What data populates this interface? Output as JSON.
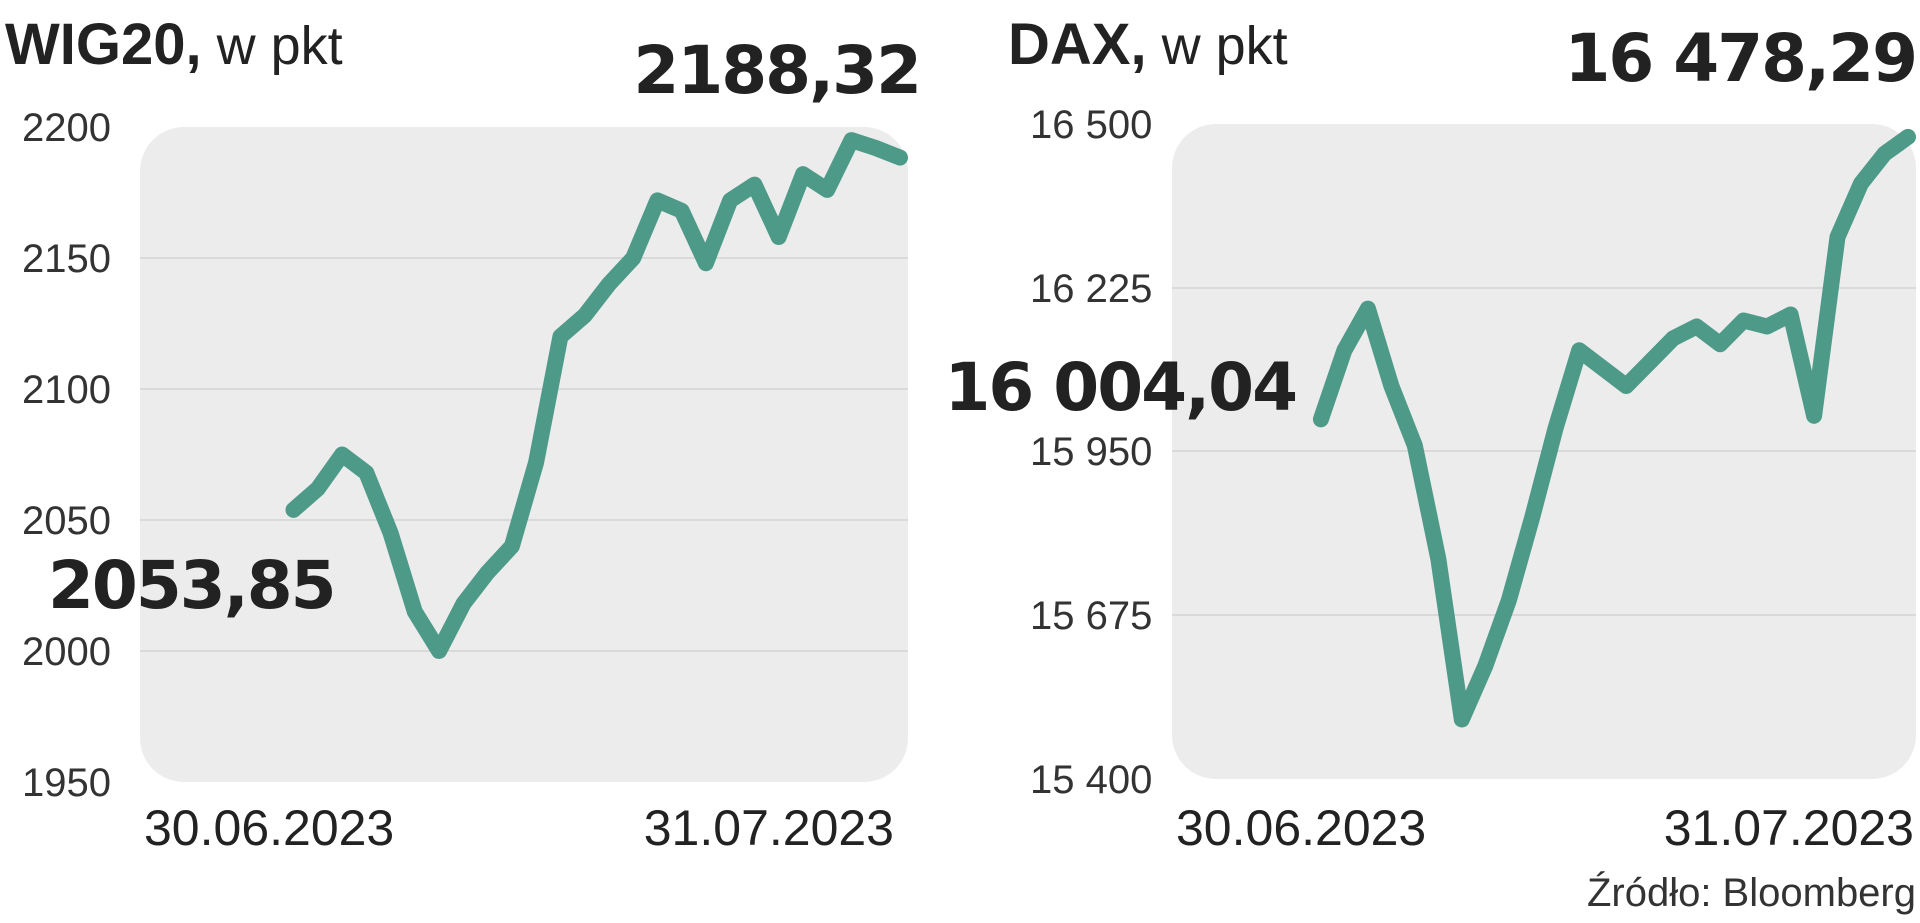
{
  "source": "Źródło: Bloomberg",
  "colors": {
    "line": "#4e9a88",
    "panel": "#ececec",
    "grid": "#d9d9d9",
    "text": "#222222"
  },
  "chart_data": [
    {
      "type": "line",
      "title": "WIG20,",
      "unit": " w pkt",
      "start_label": "2053,85",
      "end_label": "2188,32",
      "x_start_label": "30.06.2023",
      "x_end_label": "31.07.2023",
      "yticks": [
        "2200",
        "2150",
        "2100",
        "2050",
        "2000",
        "1950"
      ],
      "ylim": [
        1950,
        2200
      ],
      "xlim": [
        "2023-06-30",
        "2023-07-31"
      ],
      "grid": true,
      "x": [
        "2023-07-06",
        "2023-07-07",
        "2023-07-08",
        "2023-07-09",
        "2023-07-10",
        "2023-07-11",
        "2023-07-12",
        "2023-07-13",
        "2023-07-14",
        "2023-07-15",
        "2023-07-16",
        "2023-07-17",
        "2023-07-18",
        "2023-07-19",
        "2023-07-20",
        "2023-07-21",
        "2023-07-22",
        "2023-07-23",
        "2023-07-24",
        "2023-07-25",
        "2023-07-26",
        "2023-07-27",
        "2023-07-28",
        "2023-07-29",
        "2023-07-30",
        "2023-07-31"
      ],
      "values": [
        2053.85,
        2062,
        2075,
        2068,
        2045,
        2015,
        2000,
        2018,
        2030,
        2040,
        2072,
        2120,
        2128,
        2140,
        2150,
        2172,
        2168,
        2148,
        2172,
        2178,
        2158,
        2182,
        2176,
        2195,
        2192,
        2188.32
      ]
    },
    {
      "type": "line",
      "title": "DAX,",
      "unit": " w pkt",
      "start_label": "16 004,04",
      "end_label": "16 478,29",
      "x_start_label": "30.06.2023",
      "x_end_label": "31.07.2023",
      "yticks": [
        "16 500",
        "16 225",
        "15 950",
        "15 675",
        "15 400"
      ],
      "ylim": [
        15400,
        16500
      ],
      "xlim": [
        "2023-06-30",
        "2023-07-31"
      ],
      "grid": true,
      "x": [
        "2023-07-06",
        "2023-07-07",
        "2023-07-08",
        "2023-07-09",
        "2023-07-10",
        "2023-07-11",
        "2023-07-12",
        "2023-07-13",
        "2023-07-14",
        "2023-07-15",
        "2023-07-16",
        "2023-07-17",
        "2023-07-18",
        "2023-07-19",
        "2023-07-20",
        "2023-07-21",
        "2023-07-22",
        "2023-07-23",
        "2023-07-24",
        "2023-07-25",
        "2023-07-26",
        "2023-07-27",
        "2023-07-28",
        "2023-07-29",
        "2023-07-30",
        "2023-07-31"
      ],
      "values": [
        16004.04,
        16120,
        16190,
        16060,
        15960,
        15770,
        15500,
        15590,
        15700,
        15840,
        15990,
        16120,
        16090,
        16060,
        16100,
        16140,
        16160,
        16130,
        16170,
        16160,
        16180,
        16010,
        16310,
        16400,
        16450,
        16478.29
      ]
    }
  ]
}
